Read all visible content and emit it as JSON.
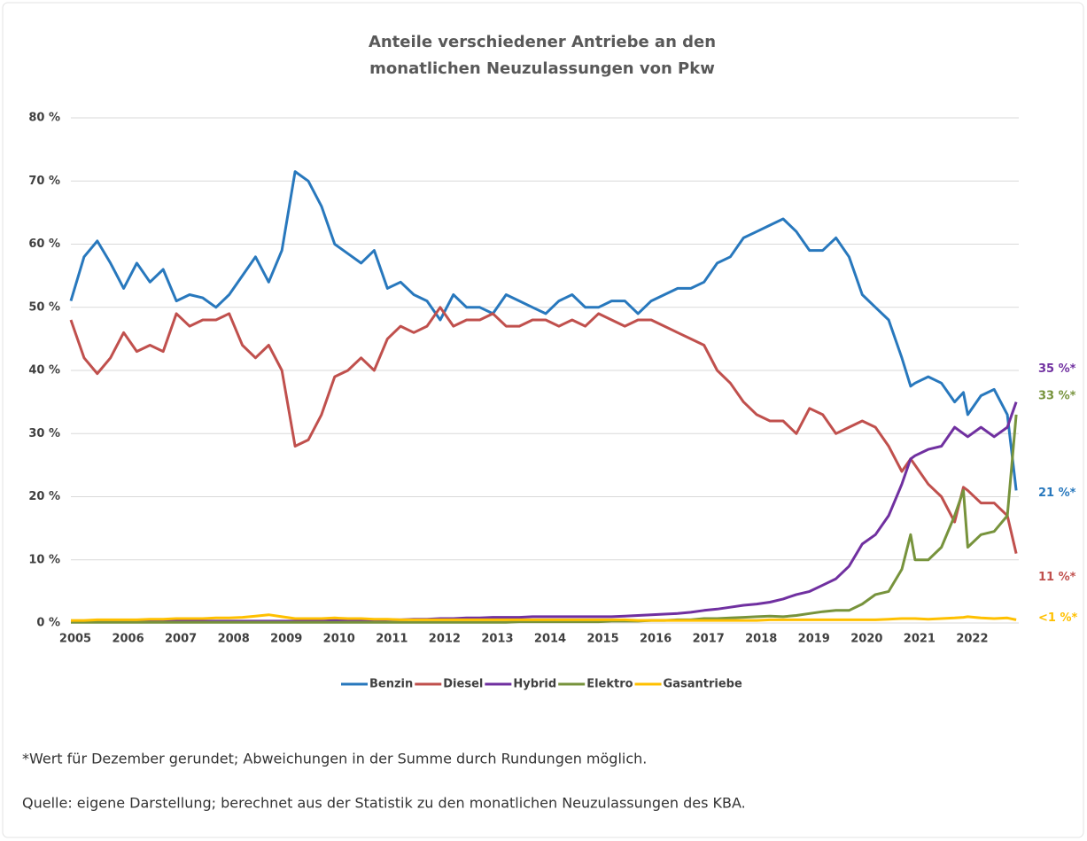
{
  "chart_data": {
    "type": "line",
    "title": [
      "Anteile verschiedener Antriebe an den",
      "monatlichen Neuzulassungen von Pkw"
    ],
    "x": [
      2005,
      2005.25,
      2005.5,
      2005.75,
      2006,
      2006.25,
      2006.5,
      2006.75,
      2007,
      2007.25,
      2007.5,
      2007.75,
      2008,
      2008.25,
      2008.5,
      2008.75,
      2009,
      2009.25,
      2009.5,
      2009.75,
      2010,
      2010.25,
      2010.5,
      2010.75,
      2011,
      2011.25,
      2011.5,
      2011.75,
      2012,
      2012.25,
      2012.5,
      2012.75,
      2013,
      2013.25,
      2013.5,
      2013.75,
      2014,
      2014.25,
      2014.5,
      2014.75,
      2015,
      2015.25,
      2015.5,
      2015.75,
      2016,
      2016.25,
      2016.5,
      2016.75,
      2017,
      2017.25,
      2017.5,
      2017.75,
      2018,
      2018.25,
      2018.5,
      2018.75,
      2019,
      2019.25,
      2019.5,
      2019.75,
      2020,
      2020.25,
      2020.5,
      2020.75,
      2020.917,
      2021,
      2021.25,
      2021.5,
      2021.75,
      2021.917,
      2022,
      2022.25,
      2022.5,
      2022.75,
      2022.917
    ],
    "series": [
      {
        "name": "Benzin",
        "color": "#2878bd",
        "end_label": "21 %*",
        "values": [
          51,
          58,
          60.5,
          57,
          53,
          57,
          54,
          56,
          51,
          52,
          51.5,
          50,
          52,
          55,
          58,
          54,
          59,
          71.5,
          70,
          66,
          60,
          58.5,
          57,
          59,
          53,
          54,
          52,
          51,
          48,
          52,
          50,
          50,
          49,
          52,
          51,
          50,
          49,
          51,
          52,
          50,
          50,
          51,
          51,
          49,
          51,
          52,
          53,
          53,
          54,
          57,
          58,
          61,
          62,
          63,
          64,
          62,
          59,
          59,
          61,
          58,
          52,
          50,
          48,
          42,
          37.5,
          38,
          39,
          38,
          35,
          36.5,
          33,
          36,
          37,
          33,
          21
        ]
      },
      {
        "name": "Diesel",
        "color": "#c0504d",
        "end_label": "11 %*",
        "values": [
          48,
          42,
          39.5,
          42,
          46,
          43,
          44,
          43,
          49,
          47,
          48,
          48,
          49,
          44,
          42,
          44,
          40,
          28,
          29,
          33,
          39,
          40,
          42,
          40,
          45,
          47,
          46,
          47,
          50,
          47,
          48,
          48,
          49,
          47,
          47,
          48,
          48,
          47,
          48,
          47,
          49,
          48,
          47,
          48,
          48,
          47,
          46,
          45,
          44,
          40,
          38,
          35,
          33,
          32,
          32,
          30,
          34,
          33,
          30,
          31,
          32,
          31,
          28,
          24,
          26,
          25,
          22,
          20,
          16,
          21.5,
          21,
          19,
          19,
          17,
          11
        ]
      },
      {
        "name": "Hybrid",
        "color": "#7030a0",
        "end_label": "35 %*",
        "values": [
          0.3,
          0.3,
          0.3,
          0.3,
          0.3,
          0.3,
          0.3,
          0.3,
          0.3,
          0.3,
          0.3,
          0.3,
          0.3,
          0.3,
          0.3,
          0.3,
          0.3,
          0.3,
          0.3,
          0.3,
          0.4,
          0.4,
          0.4,
          0.4,
          0.5,
          0.5,
          0.6,
          0.6,
          0.7,
          0.7,
          0.8,
          0.8,
          0.9,
          0.9,
          0.9,
          1,
          1,
          1,
          1,
          1,
          1,
          1,
          1.1,
          1.2,
          1.3,
          1.4,
          1.5,
          1.7,
          2,
          2.2,
          2.5,
          2.8,
          3,
          3.3,
          3.8,
          4.5,
          5,
          6,
          7,
          9,
          12.5,
          14,
          17,
          22,
          26,
          26.5,
          27.5,
          28,
          31,
          30,
          29.5,
          31,
          29.5,
          31,
          35
        ]
      },
      {
        "name": "Elektro",
        "color": "#77933c",
        "end_label": "33 %*",
        "values": [
          0.1,
          0.1,
          0.1,
          0.1,
          0.1,
          0.1,
          0.1,
          0.1,
          0.1,
          0.1,
          0.1,
          0.1,
          0.1,
          0.1,
          0.1,
          0.1,
          0.1,
          0.1,
          0.1,
          0.1,
          0.1,
          0.1,
          0.1,
          0.1,
          0.1,
          0.1,
          0.1,
          0.1,
          0.1,
          0.1,
          0.1,
          0.1,
          0.1,
          0.1,
          0.2,
          0.2,
          0.2,
          0.2,
          0.2,
          0.2,
          0.2,
          0.3,
          0.3,
          0.3,
          0.4,
          0.4,
          0.5,
          0.5,
          0.7,
          0.7,
          0.8,
          0.9,
          1,
          1.1,
          1,
          1.2,
          1.5,
          1.8,
          2,
          2,
          3,
          4.5,
          5,
          8.5,
          14,
          10,
          10,
          12,
          17,
          21,
          12,
          14,
          14.5,
          17,
          33
        ]
      },
      {
        "name": "Gasantriebe",
        "color": "#ffc000",
        "end_label": "<1 %*",
        "values": [
          0.4,
          0.4,
          0.5,
          0.5,
          0.5,
          0.5,
          0.6,
          0.6,
          0.7,
          0.7,
          0.7,
          0.8,
          0.8,
          0.9,
          1.1,
          1.3,
          1,
          0.7,
          0.7,
          0.7,
          0.8,
          0.7,
          0.7,
          0.6,
          0.6,
          0.5,
          0.5,
          0.5,
          0.5,
          0.5,
          0.5,
          0.5,
          0.5,
          0.5,
          0.5,
          0.5,
          0.5,
          0.5,
          0.5,
          0.5,
          0.5,
          0.5,
          0.5,
          0.4,
          0.4,
          0.4,
          0.4,
          0.4,
          0.4,
          0.4,
          0.4,
          0.4,
          0.4,
          0.5,
          0.5,
          0.5,
          0.5,
          0.5,
          0.5,
          0.5,
          0.5,
          0.5,
          0.6,
          0.7,
          0.7,
          0.7,
          0.6,
          0.7,
          0.8,
          0.9,
          1,
          0.8,
          0.7,
          0.8,
          0.5
        ]
      }
    ],
    "xlim": [
      2005,
      2023
    ],
    "xticks": [
      2005,
      2006,
      2007,
      2008,
      2009,
      2010,
      2011,
      2012,
      2013,
      2014,
      2015,
      2016,
      2017,
      2018,
      2019,
      2020,
      2021,
      2022
    ],
    "ylim": [
      0,
      80
    ],
    "yticks": [
      {
        "value": 0,
        "label": "0 %"
      },
      {
        "value": 10,
        "label": "10 %"
      },
      {
        "value": 20,
        "label": "20 %"
      },
      {
        "value": 30,
        "label": "30 %"
      },
      {
        "value": 40,
        "label": "40 %"
      },
      {
        "value": 50,
        "label": "50 %"
      },
      {
        "value": 60,
        "label": "60 %"
      },
      {
        "value": 70,
        "label": "70 %"
      },
      {
        "value": 80,
        "label": "80 %"
      }
    ],
    "grid": true,
    "legend": "bottom",
    "notes": [
      "*Wert für Dezember gerundet; Abweichungen in der Summe durch Rundungen möglich.",
      "Quelle: eigene Darstellung; berechnet aus der Statistik zu den monatlichen Neuzulassungen des KBA."
    ]
  }
}
